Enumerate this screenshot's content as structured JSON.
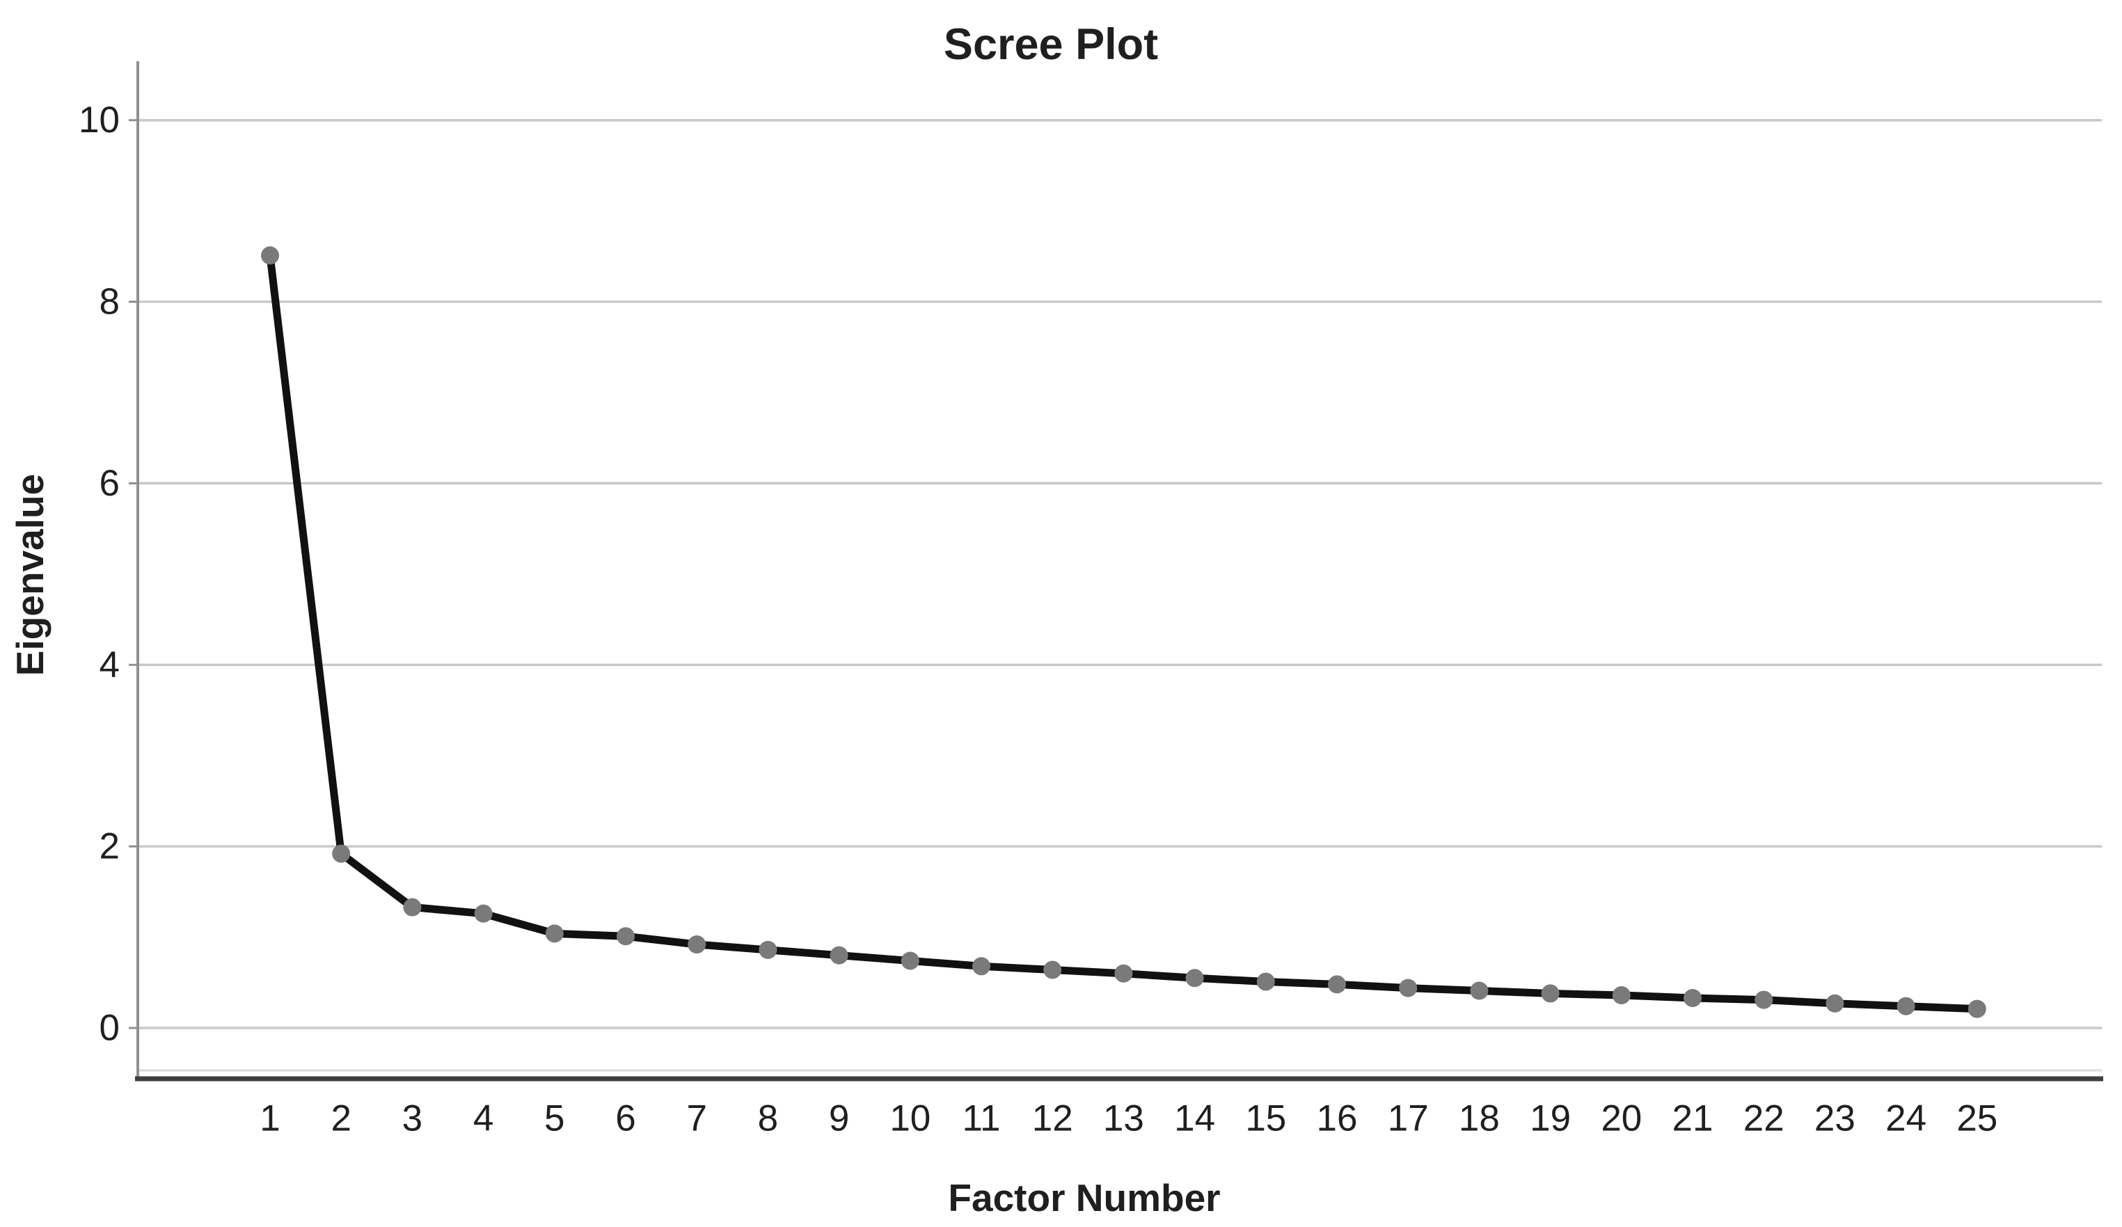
{
  "chart": {
    "title": "Scree Plot",
    "xlabel": "Factor Number",
    "ylabel": "Eigenvalue"
  },
  "chart_data": {
    "type": "line",
    "title": "Scree Plot",
    "xlabel": "Factor Number",
    "ylabel": "Eigenvalue",
    "x": [
      1,
      2,
      3,
      4,
      5,
      6,
      7,
      8,
      9,
      10,
      11,
      12,
      13,
      14,
      15,
      16,
      17,
      18,
      19,
      20,
      21,
      22,
      23,
      24,
      25
    ],
    "values": [
      8.51,
      1.92,
      1.33,
      1.26,
      1.04,
      1.01,
      0.92,
      0.86,
      0.8,
      0.74,
      0.68,
      0.64,
      0.6,
      0.55,
      0.51,
      0.48,
      0.44,
      0.41,
      0.38,
      0.36,
      0.33,
      0.31,
      0.27,
      0.24,
      0.21
    ],
    "yticks": [
      10,
      8,
      6,
      4,
      2,
      0
    ],
    "ylim": [
      -0.56,
      10.64
    ],
    "xlim": [
      -0.86,
      26.75
    ],
    "grid": true,
    "legend": "none",
    "colors": {
      "line": "#111111",
      "marker": "#7a7a7a",
      "grid": "#c9c9c9",
      "y_axis": "#8f8f8f",
      "x_axis_dark": "#3d3d3d",
      "x_axis_light": "#d9d9d9",
      "text": "#1f1f1f",
      "background": "#ffffff"
    }
  }
}
